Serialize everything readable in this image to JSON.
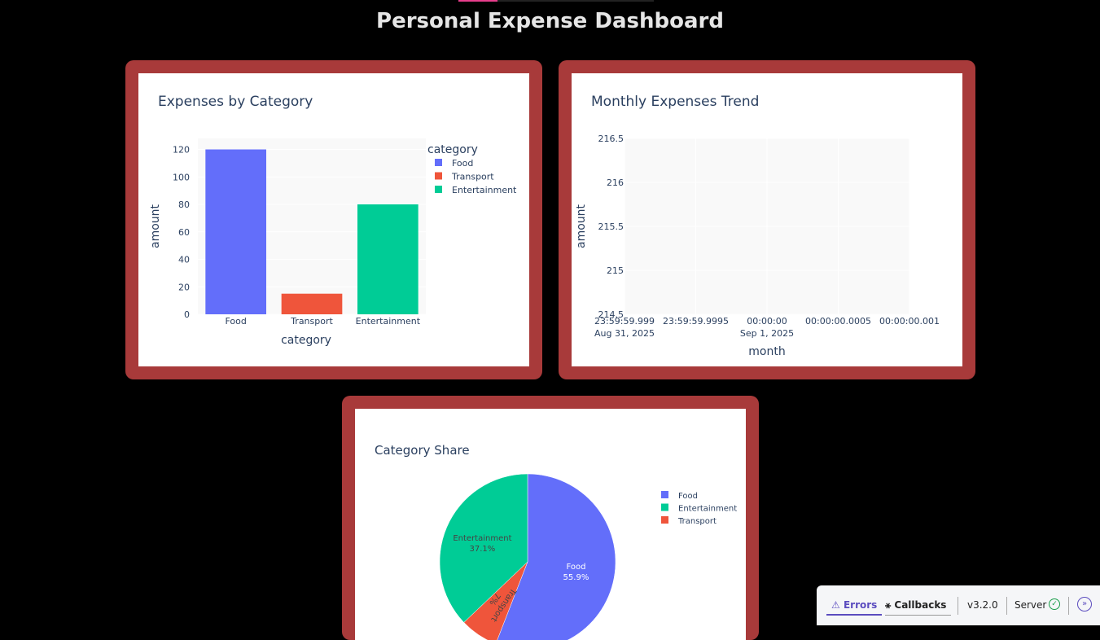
{
  "page": {
    "title": "Personal Expense Dashboard"
  },
  "colors": {
    "page_bg": "#000000",
    "card_border": "#a83a3a",
    "plot_bg": "#f9f9f9",
    "food": "#636efa",
    "transport": "#ef553b",
    "entertainment": "#00cc96",
    "text": "#2a3f5f"
  },
  "bar_chart": {
    "title": "Expenses by Category",
    "chart_data": {
      "type": "bar",
      "categories": [
        "Food",
        "Transport",
        "Entertainment"
      ],
      "values": [
        120,
        15,
        80
      ],
      "xlabel": "category",
      "ylabel": "amount",
      "ylim": [
        0,
        128
      ],
      "yticks": [
        "0",
        "20",
        "40",
        "60",
        "80",
        "100",
        "120"
      ],
      "legend_title": "category",
      "legend": [
        "Food",
        "Transport",
        "Entertainment"
      ],
      "legend_position": "top-right",
      "grid": true
    }
  },
  "line_chart": {
    "title": "Monthly Expenses Trend",
    "chart_data": {
      "type": "line",
      "xlabel": "month",
      "ylabel": "amount",
      "ylim": [
        214.5,
        216.5
      ],
      "yticks": [
        "216.5",
        "216",
        "215.5",
        "215",
        "214.5"
      ],
      "xticks": [
        {
          "line1": "23:59:59.999",
          "line2": "Aug 31, 2025"
        },
        {
          "line1": "23:59:59.9995",
          "line2": ""
        },
        {
          "line1": "00:00:00",
          "line2": "Sep 1, 2025"
        },
        {
          "line1": "00:00:00.0005",
          "line2": ""
        },
        {
          "line1": "00:00:00.001",
          "line2": ""
        }
      ],
      "grid": true
    }
  },
  "pie_chart": {
    "title": "Category Share",
    "chart_data": {
      "type": "pie",
      "slices": [
        {
          "label": "Food",
          "percent": 55.9,
          "percent_text": "55.9%"
        },
        {
          "label": "Transport",
          "percent": 7.0,
          "percent_text": "7%"
        },
        {
          "label": "Entertainment",
          "percent": 37.1,
          "percent_text": "37.1%"
        }
      ],
      "legend": [
        "Food",
        "Entertainment",
        "Transport"
      ],
      "legend_position": "top-right"
    }
  },
  "devtools": {
    "errors_label": "Errors",
    "callbacks_label": "Callbacks",
    "version": "v3.2.0",
    "server_label": "Server",
    "errors_icon": "warning-icon",
    "callbacks_icon": "callbacks-icon",
    "server_icon": "check-circle-icon",
    "expand_icon": "chevron-right-circle-icon"
  }
}
